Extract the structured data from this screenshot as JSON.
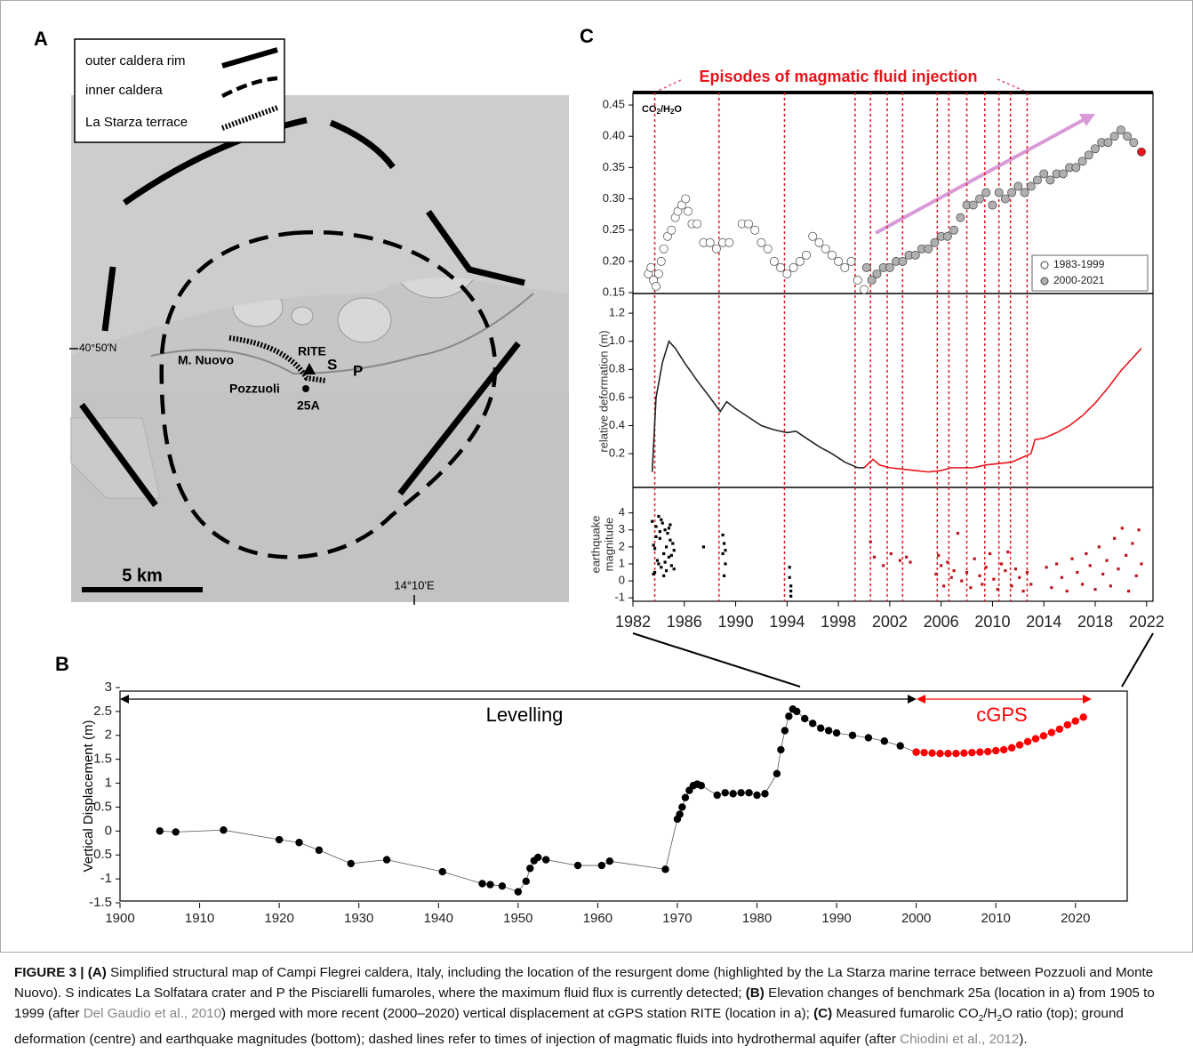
{
  "map": {
    "panel_label": "A",
    "legend": [
      "outer caldera rim",
      "inner caldera",
      "La Starza terrace"
    ],
    "places": [
      "M. Nuovo",
      "RITE",
      "S",
      "P",
      "Pozzuoli",
      "25A"
    ],
    "latitude": "40°50'N",
    "longitude": "14°10'E",
    "scale": "5 km"
  },
  "chart_data": [
    {
      "type": "line",
      "panel_label": "B",
      "ylabel": "Vertical Displacement (m)",
      "marker": "circle",
      "xlim": [
        1900,
        2026.5
      ],
      "xticks": [
        1900,
        1910,
        1920,
        1930,
        1940,
        1950,
        1960,
        1970,
        1980,
        1990,
        2000,
        2010,
        2020
      ],
      "ylim": [
        -1.5,
        3
      ],
      "yticks": [
        -1.5,
        -1,
        -0.5,
        0,
        0.5,
        1,
        1.5,
        2,
        2.5,
        3
      ],
      "series": [
        {
          "name": "Levelling",
          "color": "#000000",
          "x": [
            1905,
            1907,
            1913,
            1920,
            1922.5,
            1925,
            1929,
            1933.5,
            1940.5,
            1945.5,
            1946.5,
            1948,
            1950,
            1951,
            1951.5,
            1952,
            1952.5,
            1953.5,
            1957.5,
            1960.5,
            1961.5,
            1968.5,
            1970,
            1970.3,
            1970.6,
            1971,
            1971.5,
            1972,
            1972.5,
            1973,
            1975,
            1976,
            1977,
            1978,
            1979,
            1980,
            1981,
            1982.5,
            1983,
            1983.5,
            1984,
            1984.5,
            1985,
            1986,
            1987,
            1988,
            1989,
            1990,
            1992,
            1994,
            1996,
            1998,
            2000
          ],
          "values": [
            0,
            -0.02,
            0.02,
            -0.18,
            -0.24,
            -0.4,
            -0.68,
            -0.6,
            -0.85,
            -1.1,
            -1.12,
            -1.15,
            -1.27,
            -1.05,
            -0.78,
            -0.62,
            -0.55,
            -0.6,
            -0.72,
            -0.72,
            -0.63,
            -0.8,
            0.25,
            0.35,
            0.5,
            0.7,
            0.85,
            0.95,
            0.98,
            0.95,
            0.75,
            0.8,
            0.78,
            0.8,
            0.8,
            0.75,
            0.78,
            1.2,
            1.7,
            2.1,
            2.4,
            2.55,
            2.5,
            2.35,
            2.25,
            2.15,
            2.1,
            2.05,
            2.0,
            1.95,
            1.88,
            1.78,
            1.65
          ]
        },
        {
          "name": "cGPS",
          "color": "#ff0000",
          "x": [
            2000,
            2001,
            2002,
            2003,
            2004,
            2005,
            2006,
            2007,
            2008,
            2009,
            2010,
            2011,
            2012,
            2013,
            2014,
            2015,
            2016,
            2017,
            2018,
            2019,
            2020,
            2021
          ],
          "values": [
            1.65,
            1.64,
            1.63,
            1.62,
            1.62,
            1.62,
            1.63,
            1.64,
            1.65,
            1.66,
            1.68,
            1.7,
            1.74,
            1.8,
            1.87,
            1.93,
            1.99,
            2.06,
            2.13,
            2.22,
            2.3,
            2.38
          ]
        }
      ]
    },
    {
      "type": "scatter",
      "panel_label": "C",
      "title": "Episodes of magmatic fluid injection",
      "ylabel": [
        "CO",
        "2",
        "/H",
        "2",
        "O"
      ],
      "marker": "circle",
      "legend": "lower right",
      "episodes": [
        1983.7,
        1988.7,
        1993.8,
        1999.3,
        2000.5,
        2001.8,
        2003.0,
        2005.7,
        2006.6,
        2008.0,
        2009.4,
        2010.5,
        2011.4,
        2012.7
      ],
      "xlim": [
        1982,
        2022.5
      ],
      "ylim": [
        0.15,
        0.47
      ],
      "yticks": [
        0.15,
        {
          "value": 0.2,
          "label": "0.20"
        },
        0.25,
        {
          "value": 0.3,
          "label": "0.30"
        },
        0.35,
        {
          "value": 0.4,
          "label": "0.40"
        },
        0.45
      ],
      "series": [
        {
          "name": "1983-1999",
          "color": "#ffffff",
          "x": [
            1983.2,
            1983.4,
            1983.6,
            1983.8,
            1984.0,
            1984.2,
            1984.4,
            1984.7,
            1985.0,
            1985.3,
            1985.5,
            1985.8,
            1986.1,
            1986.3,
            1986.6,
            1987.0,
            1987.5,
            1988.0,
            1988.5,
            1989.0,
            1989.5,
            1990.5,
            1991.0,
            1991.5,
            1992.0,
            1992.5,
            1993.0,
            1993.5,
            1994.0,
            1994.5,
            1995.0,
            1995.5,
            1996.0,
            1996.5,
            1997.0,
            1997.5,
            1998.0,
            1998.5,
            1999.0,
            1999.5,
            2000.0
          ],
          "values": [
            0.18,
            0.19,
            0.17,
            0.16,
            0.18,
            0.2,
            0.22,
            0.24,
            0.25,
            0.27,
            0.28,
            0.29,
            0.3,
            0.28,
            0.26,
            0.26,
            0.23,
            0.23,
            0.22,
            0.23,
            0.23,
            0.26,
            0.26,
            0.25,
            0.23,
            0.22,
            0.2,
            0.19,
            0.18,
            0.19,
            0.2,
            0.21,
            0.24,
            0.23,
            0.22,
            0.21,
            0.2,
            0.19,
            0.2,
            0.17,
            0.155
          ]
        },
        {
          "name": "2000-2021",
          "color": "#b0b0b0",
          "x": [
            2000.2,
            2000.6,
            2001,
            2001.5,
            2002,
            2002.5,
            2003,
            2003.5,
            2004,
            2004.5,
            2005,
            2005.5,
            2006,
            2006.5,
            2007,
            2007.5,
            2008,
            2008.5,
            2009,
            2009.5,
            2010,
            2010.5,
            2011,
            2011.5,
            2012,
            2012.5,
            2013,
            2013.5,
            2014,
            2014.5,
            2015,
            2015.5,
            2016,
            2016.5,
            2017,
            2017.5,
            2018,
            2018.5,
            2019,
            2019.5,
            2020,
            2020.5,
            2021
          ],
          "values": [
            0.19,
            0.17,
            0.18,
            0.19,
            0.19,
            0.2,
            0.2,
            0.21,
            0.21,
            0.22,
            0.22,
            0.23,
            0.24,
            0.24,
            0.25,
            0.27,
            0.29,
            0.29,
            0.3,
            0.31,
            0.29,
            0.31,
            0.3,
            0.31,
            0.32,
            0.31,
            0.32,
            0.33,
            0.34,
            0.33,
            0.34,
            0.34,
            0.35,
            0.35,
            0.36,
            0.37,
            0.38,
            0.39,
            0.39,
            0.4,
            0.41,
            0.4,
            0.39
          ]
        },
        {
          "color": "#e8141c",
          "x": [
            2021.6
          ],
          "values": [
            0.375
          ]
        }
      ]
    },
    {
      "type": "line",
      "ylabel": "relative deformation (m)",
      "xlim": [
        1982,
        2022.5
      ],
      "ylim": [
        -0.04,
        1.34
      ],
      "yticks": [
        0.2,
        0.4,
        0.6,
        0.8,
        {
          "value": 1,
          "label": "1.0"
        },
        1.2
      ],
      "series": [
        {
          "color": "#222222",
          "x": [
            1983.5,
            1983.8,
            1984.3,
            1984.8,
            1985.3,
            1986,
            1987,
            1988,
            1988.8,
            1989.3,
            1990,
            1991,
            1992,
            1993,
            1994,
            1994.7,
            1995.5,
            1996.5,
            1997.5,
            1998.5,
            1999.5,
            2000
          ],
          "values": [
            0.07,
            0.6,
            0.85,
            1.0,
            0.95,
            0.85,
            0.72,
            0.6,
            0.5,
            0.57,
            0.52,
            0.46,
            0.4,
            0.37,
            0.35,
            0.36,
            0.31,
            0.25,
            0.2,
            0.14,
            0.1,
            0.1
          ]
        },
        {
          "color": "#e8141c",
          "x": [
            2000,
            2000.7,
            2001.2,
            2002,
            2003,
            2004,
            2005,
            2006,
            2006.8,
            2007.5,
            2008.5,
            2009.5,
            2010.5,
            2011.5,
            2012.5,
            2013,
            2013.3,
            2014,
            2015,
            2016,
            2017,
            2018,
            2019,
            2020,
            2021,
            2021.6
          ],
          "values": [
            0.1,
            0.16,
            0.12,
            0.1,
            0.09,
            0.08,
            0.07,
            0.08,
            0.1,
            0.1,
            0.1,
            0.12,
            0.13,
            0.14,
            0.18,
            0.2,
            0.3,
            0.31,
            0.35,
            0.4,
            0.47,
            0.56,
            0.67,
            0.79,
            0.89,
            0.95
          ]
        }
      ]
    },
    {
      "type": "scatter",
      "ylabel": [
        "earthquake",
        "magnitude"
      ],
      "marker": "square",
      "xlim": [
        1982,
        2022.5
      ],
      "xticks": [
        1982,
        1986,
        1990,
        1994,
        1998,
        2002,
        2006,
        2010,
        2014,
        2018,
        2022
      ],
      "ylim": [
        -1.2,
        5.5
      ],
      "yticks": [
        -1,
        0,
        1,
        2,
        3,
        4
      ],
      "series": [
        {
          "color": "#000000",
          "x": [
            1983.5,
            1983.6,
            1983.7,
            1983.8,
            1983.9,
            1984.0,
            1984.1,
            1984.2,
            1984.3,
            1984.4,
            1984.5,
            1984.6,
            1984.7,
            1984.8,
            1984.9,
            1985.0,
            1985.1,
            1985.2,
            1983.6,
            1983.8,
            1984.0,
            1984.2,
            1984.4,
            1984.6,
            1984.8,
            1985.0,
            1985.2,
            1983.7,
            1984.1,
            1984.5,
            1984.9,
            1987.5,
            1989.0,
            1989.0,
            1989.1,
            1989.1,
            1989.2,
            1989.2,
            1994.2,
            1994.2,
            1994.3,
            1994.3,
            1994.3
          ],
          "values": [
            3.5,
            2.1,
            0.5,
            3.2,
            1.2,
            3.8,
            2.5,
            0.8,
            3.4,
            1.6,
            3.0,
            0.6,
            2.8,
            1.4,
            3.3,
            0.9,
            2.2,
            1.8,
            0.4,
            2.6,
            1.0,
            3.6,
            0.3,
            2.0,
            3.1,
            1.5,
            0.7,
            1.9,
            2.9,
            1.1,
            2.4,
            2.0,
            2.7,
            1.6,
            0.3,
            2.2,
            1.0,
            1.8,
            0.8,
            0.2,
            -0.3,
            -0.6,
            -0.9
          ]
        },
        {
          "color": "#c0141c",
          "x": [
            2000.5,
            2000.8,
            2001.5,
            2002.1,
            2002.8,
            2003.3,
            2003.6,
            2005.6,
            2005.8,
            2006.0,
            2006.2,
            2006.5,
            2006.8,
            2007.0,
            2007.3,
            2007.6,
            2008.0,
            2008.3,
            2008.6,
            2009.0,
            2009.2,
            2009.5,
            2009.8,
            2010.1,
            2010.4,
            2010.7,
            2011.0,
            2011.2,
            2011.5,
            2011.8,
            2012.1,
            2012.4,
            2012.7,
            2013.0,
            2014.2,
            2014.6,
            2015.0,
            2015.4,
            2015.8,
            2016.2,
            2016.6,
            2017.0,
            2017.3,
            2017.6,
            2018.0,
            2018.3,
            2018.6,
            2018.9,
            2019.2,
            2019.5,
            2019.8,
            2020.1,
            2020.4,
            2020.6,
            2020.9,
            2021.2,
            2021.4,
            2021.6
          ],
          "values": [
            2.3,
            1.4,
            0.9,
            1.6,
            1.2,
            1.4,
            1.1,
            0.4,
            1.5,
            0.9,
            -0.3,
            1.1,
            0.2,
            0.6,
            2.8,
            0,
            0.5,
            -0.4,
            1.3,
            0.3,
            -0.2,
            0.8,
            1.6,
            0.1,
            -0.5,
            1.0,
            0.6,
            1.7,
            -0.3,
            0.7,
            0.2,
            -0.6,
            0.5,
            -0.2,
            0.8,
            -0.4,
            1.0,
            0.2,
            -0.6,
            1.3,
            0.5,
            -0.2,
            1.6,
            0.9,
            -0.5,
            2.0,
            0.4,
            1.2,
            -0.3,
            2.5,
            0.7,
            3.1,
            1.5,
            -0.6,
            2.2,
            0.3,
            3.0,
            1.0
          ]
        }
      ]
    }
  ],
  "caption": [
    "FIGURE 3 | (A)",
    " Simplified structural map of Campi Flegrei caldera, Italy, including the location of the resurgent dome (highlighted by the La Starza marine terrace between Pozzuoli and Monte Nuovo). S indicates La Solfatara crater and P the Pisciarelli fumaroles, where the maximum fluid flux is currently detected; ",
    "(B)",
    " Elevation changes of benchmark 25a (location in a) from 1905 to 1999 (after ",
    "Del Gaudio et al., 2010",
    ") merged with more recent (2000–2020) vertical displacement at cGPS station RITE (location in a); ",
    "(C)",
    " Measured fumarolic CO",
    "2",
    "/H",
    "2",
    "O ratio (top); ground deformation (centre) and earthquake magnitudes (bottom); dashed lines refer to times of injection of magmatic fluids into hydrothermal aquifer (after ",
    "Chiodini et al., 2012",
    ")."
  ]
}
